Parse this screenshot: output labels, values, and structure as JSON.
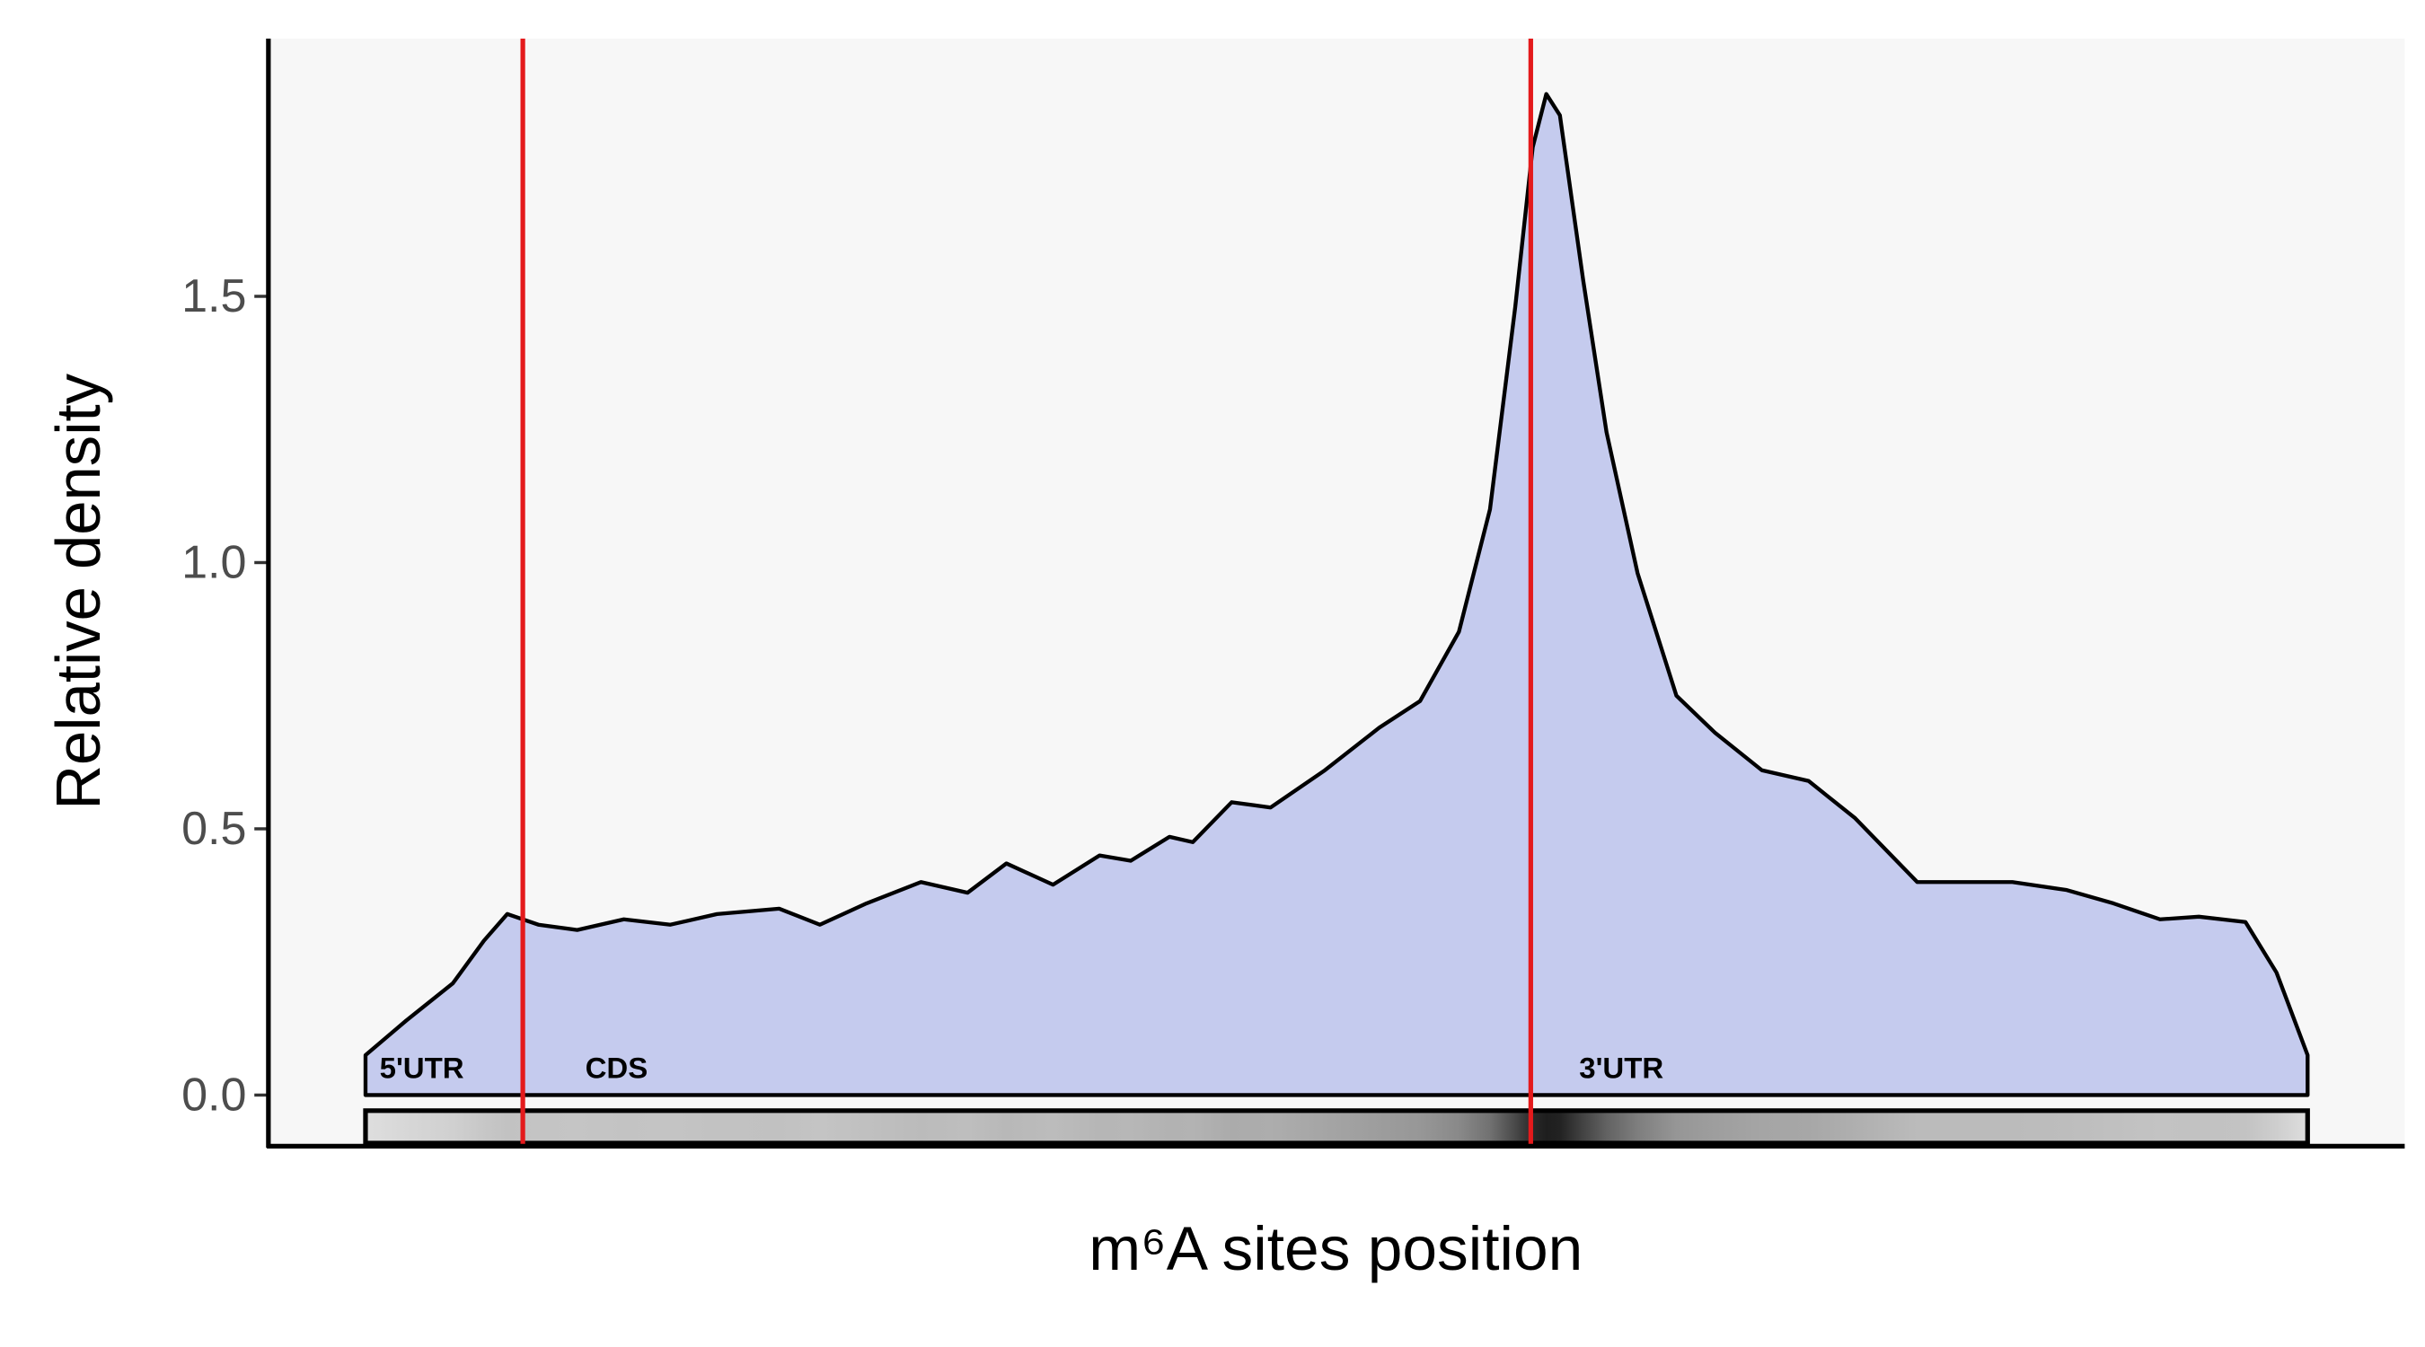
{
  "chart_data": {
    "type": "area",
    "xlabel": "m⁶A sites position",
    "ylabel": "Relative density",
    "x": [
      0,
      0.021,
      0.045,
      0.061,
      0.073,
      0.089,
      0.109,
      0.133,
      0.157,
      0.181,
      0.213,
      0.234,
      0.258,
      0.286,
      0.31,
      0.33,
      0.354,
      0.378,
      0.394,
      0.414,
      0.426,
      0.446,
      0.466,
      0.494,
      0.522,
      0.543,
      0.563,
      0.579,
      0.592,
      0.601,
      0.608,
      0.615,
      0.627,
      0.639,
      0.655,
      0.675,
      0.695,
      0.719,
      0.743,
      0.767,
      0.799,
      0.823,
      0.848,
      0.876,
      0.9,
      0.924,
      0.944,
      0.968,
      0.984,
      1
    ],
    "values": [
      0.075,
      0.14,
      0.21,
      0.29,
      0.34,
      0.32,
      0.31,
      0.33,
      0.32,
      0.34,
      0.35,
      0.32,
      0.36,
      0.4,
      0.38,
      0.435,
      0.395,
      0.45,
      0.44,
      0.485,
      0.475,
      0.55,
      0.54,
      0.61,
      0.69,
      0.74,
      0.87,
      1.1,
      1.48,
      1.78,
      1.88,
      1.84,
      1.53,
      1.245,
      0.98,
      0.75,
      0.68,
      0.61,
      0.59,
      0.52,
      0.4,
      0.4,
      0.4,
      0.385,
      0.36,
      0.33,
      0.335,
      0.325,
      0.23,
      0.075
    ],
    "color": "#c5cbee",
    "line_color": "#000000",
    "boundaries": [
      0.081,
      0.6
    ],
    "boundary_color": "#e41a1c",
    "regions": [
      "5'UTR",
      "CDS",
      "3'UTR"
    ],
    "xlim": [
      -0.05,
      1.05
    ],
    "ylim": [
      -0.096,
      1.984
    ],
    "yticks": [
      {
        "value": 0,
        "label": "0.0"
      },
      0.5,
      {
        "value": 1,
        "label": "1.0"
      },
      1.5
    ],
    "grid": false
  }
}
